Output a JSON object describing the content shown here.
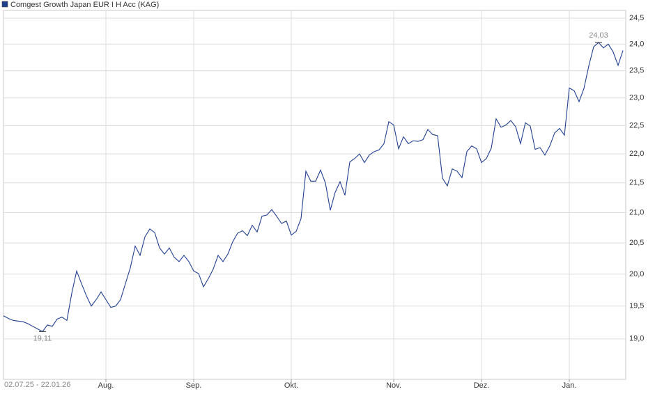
{
  "chart_data": {
    "type": "line",
    "categories": [
      null,
      null,
      null,
      null,
      null,
      null,
      null,
      null,
      null,
      null,
      null,
      null,
      null,
      null,
      null,
      null,
      null,
      null,
      null,
      null,
      null,
      "Aug.",
      null,
      null,
      null,
      null,
      null,
      null,
      null,
      null,
      null,
      null,
      null,
      null,
      null,
      null,
      null,
      null,
      null,
      "Sep.",
      null,
      null,
      null,
      null,
      null,
      null,
      null,
      null,
      null,
      null,
      null,
      null,
      null,
      null,
      null,
      null,
      null,
      null,
      null,
      "Okt.",
      null,
      null,
      null,
      null,
      null,
      null,
      null,
      null,
      null,
      null,
      null,
      null,
      null,
      null,
      null,
      null,
      null,
      null,
      null,
      null,
      "Nov.",
      null,
      null,
      null,
      null,
      null,
      null,
      null,
      null,
      null,
      null,
      null,
      null,
      null,
      null,
      null,
      null,
      null,
      "Dez.",
      null,
      null,
      null,
      null,
      null,
      null,
      null,
      null,
      null,
      null,
      null,
      null,
      null,
      null,
      null,
      null,
      null,
      "Jan.",
      null,
      null,
      null,
      null,
      null,
      null,
      null,
      null,
      null,
      null,
      null
    ],
    "series": [
      {
        "name": "Comgest Growth Japan EUR I H Acc (KAG)",
        "color": "#1f3f8f",
        "values": [
          19.35,
          19.31,
          19.28,
          19.27,
          19.26,
          19.23,
          19.19,
          19.15,
          19.11,
          19.21,
          19.19,
          19.3,
          19.33,
          19.28,
          19.7,
          20.05,
          19.85,
          19.66,
          19.5,
          19.6,
          19.72,
          19.6,
          19.48,
          19.5,
          19.6,
          19.85,
          20.1,
          20.45,
          20.3,
          20.6,
          20.73,
          20.67,
          20.42,
          20.32,
          20.42,
          20.27,
          20.2,
          20.3,
          20.2,
          20.05,
          20.01,
          19.8,
          19.93,
          20.08,
          20.3,
          20.2,
          20.32,
          20.52,
          20.66,
          20.7,
          20.62,
          20.79,
          20.68,
          20.94,
          20.96,
          21.05,
          20.94,
          20.82,
          20.86,
          20.63,
          20.69,
          20.9,
          21.7,
          21.53,
          21.53,
          21.72,
          21.5,
          21.04,
          21.34,
          21.52,
          21.29,
          21.86,
          21.92,
          22.0,
          21.85,
          21.98,
          22.04,
          22.07,
          22.18,
          22.57,
          22.51,
          22.09,
          22.3,
          22.18,
          22.23,
          22.22,
          22.25,
          22.43,
          22.34,
          22.32,
          21.58,
          21.45,
          21.74,
          21.7,
          21.59,
          22.04,
          22.14,
          22.09,
          21.85,
          21.92,
          22.1,
          22.62,
          22.47,
          22.51,
          22.59,
          22.48,
          22.18,
          22.55,
          22.49,
          22.08,
          22.11,
          21.98,
          22.14,
          22.37,
          22.45,
          22.33,
          23.18,
          23.13,
          22.93,
          23.17,
          23.59,
          23.95,
          24.03,
          23.93,
          24.0,
          23.85,
          23.6,
          23.88
        ]
      }
    ],
    "min_label": "19,11",
    "max_label": "24,03",
    "date_range": "02.07.25 - 22.01.26",
    "ylim": [
      18.4,
      24.65
    ],
    "log_scale": true,
    "grid": true,
    "yticks": [
      {
        "value": 19.0,
        "label": "19,0"
      },
      {
        "value": 19.5,
        "label": "19,5"
      },
      {
        "value": 20.0,
        "label": "20,0"
      },
      {
        "value": 20.5,
        "label": "20,5"
      },
      {
        "value": 21.0,
        "label": "21,0"
      },
      {
        "value": 21.5,
        "label": "21,5"
      },
      {
        "value": 22.0,
        "label": "22,0"
      },
      {
        "value": 22.5,
        "label": "22,5"
      },
      {
        "value": 23.0,
        "label": "23,0"
      },
      {
        "value": 23.5,
        "label": "23,5"
      },
      {
        "value": 24.0,
        "label": "24,0"
      },
      {
        "value": 24.5,
        "label": "24,5"
      }
    ]
  }
}
